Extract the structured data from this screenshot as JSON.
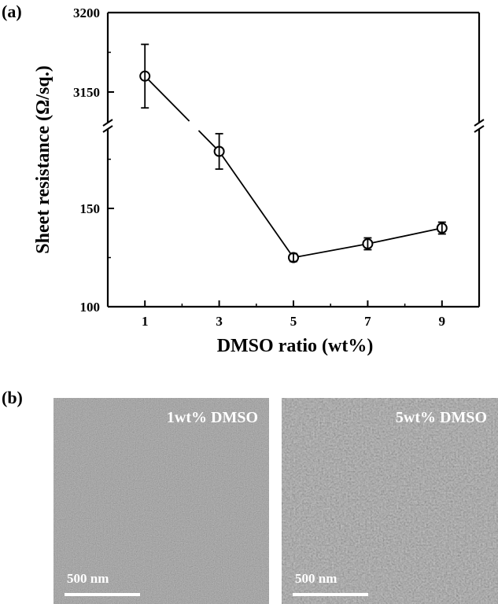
{
  "figure": {
    "panel_a_label": "(a)",
    "panel_b_label": "(b)"
  },
  "chart_data": {
    "type": "line",
    "xlabel": "DMSO ratio (wt%)",
    "ylabel": "Sheet resistance (Ω/sq.)",
    "x_ticks": [
      "1",
      "3",
      "5",
      "7",
      "9"
    ],
    "y_ticks_lower": [
      "100",
      "150"
    ],
    "y_ticks_upper": [
      "3150",
      "3200"
    ],
    "y_axis_break": true,
    "series": [
      {
        "x": [
          1,
          3,
          5,
          7,
          9
        ],
        "y": [
          3160,
          179,
          125,
          132,
          140
        ],
        "error": [
          20,
          9,
          2,
          3,
          3
        ],
        "marker": "open-circle",
        "color": "#000000"
      }
    ]
  },
  "sem_images": [
    {
      "label": "1wt% DMSO",
      "scale_bar": "500 nm"
    },
    {
      "label": "5wt% DMSO",
      "scale_bar": "500 nm"
    }
  ]
}
